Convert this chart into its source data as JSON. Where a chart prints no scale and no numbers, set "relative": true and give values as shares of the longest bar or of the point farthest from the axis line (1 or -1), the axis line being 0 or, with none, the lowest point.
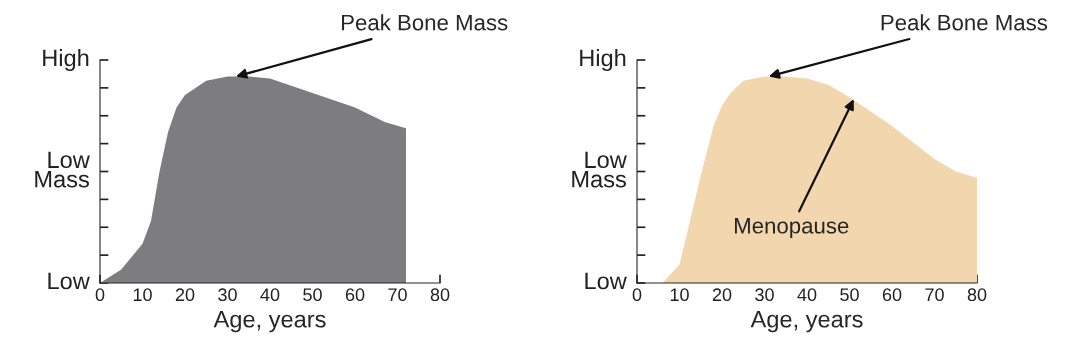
{
  "chart_data": [
    {
      "type": "area",
      "relative": true,
      "xlabel": "Age, years",
      "xlim": [
        0,
        80
      ],
      "xticks": [
        0,
        10,
        20,
        30,
        40,
        50,
        60,
        70,
        80
      ],
      "grid": false,
      "legend": false,
      "annotations": [
        "High",
        "Low\nMass",
        "Low",
        {
          "text": "Peak Bone Mass",
          "x": 32,
          "y": 1
        }
      ],
      "series": [
        {
          "color": "#7d7d80",
          "x": [
            0,
            5,
            10,
            12,
            14,
            16,
            18,
            20,
            25,
            30,
            35,
            40,
            50,
            60,
            67,
            72
          ],
          "values": [
            0,
            0.065,
            0.19,
            0.3,
            0.54,
            0.73,
            0.85,
            0.91,
            0.98,
            1,
            1,
            0.99,
            0.92,
            0.85,
            0.78,
            0.75
          ]
        }
      ]
    },
    {
      "type": "area",
      "relative": true,
      "xlabel": "Age, years",
      "xlim": [
        0,
        80
      ],
      "xticks": [
        0,
        10,
        20,
        30,
        40,
        50,
        60,
        70,
        80
      ],
      "grid": false,
      "legend": false,
      "annotations": [
        "High",
        "Low\nMass",
        "Low",
        {
          "text": "Peak Bone Mass",
          "x": 31,
          "y": 1
        },
        {
          "text": "Menopause",
          "x": 51,
          "y": 0.89
        }
      ],
      "series": [
        {
          "color": "#f2d6ad",
          "x": [
            6,
            10,
            12,
            15,
            18,
            20,
            22,
            25,
            30,
            35,
            40,
            45,
            50,
            55,
            60,
            65,
            70,
            75,
            80
          ],
          "values": [
            0,
            0.09,
            0.26,
            0.52,
            0.76,
            0.86,
            0.92,
            0.98,
            1,
            1,
            0.99,
            0.96,
            0.9,
            0.83,
            0.76,
            0.68,
            0.6,
            0.54,
            0.51
          ]
        }
      ]
    }
  ]
}
